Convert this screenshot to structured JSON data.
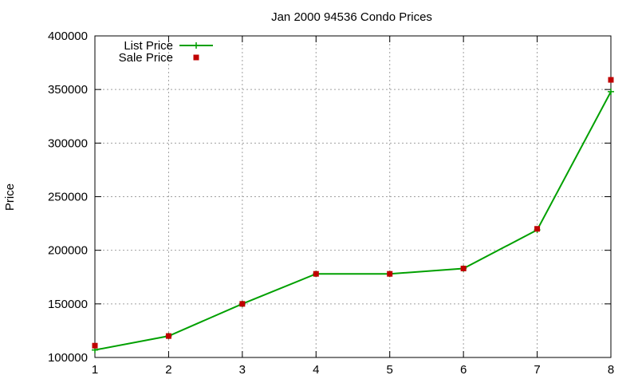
{
  "chart_data": {
    "type": "line",
    "title": "Jan 2000 94536 Condo Prices",
    "xlabel": "",
    "ylabel": "Price",
    "x": [
      1,
      2,
      3,
      4,
      5,
      6,
      7,
      8
    ],
    "xlim": [
      1,
      8
    ],
    "ylim": [
      100000,
      400000
    ],
    "xticks": [
      "1",
      "2",
      "3",
      "4",
      "5",
      "6",
      "7",
      "8"
    ],
    "yticks": [
      "100000",
      "150000",
      "200000",
      "250000",
      "300000",
      "350000",
      "400000"
    ],
    "grid": true,
    "legend_position": "top-left",
    "series": [
      {
        "name": "List Price",
        "style": "line-points",
        "color": "#00a000",
        "values": [
          107000,
          120000,
          150000,
          178000,
          178000,
          183000,
          219000,
          348000
        ]
      },
      {
        "name": "Sale Price",
        "style": "points",
        "color": "#c00000",
        "values": [
          111000,
          120000,
          150000,
          178000,
          178000,
          183000,
          220000,
          359000
        ]
      }
    ]
  }
}
